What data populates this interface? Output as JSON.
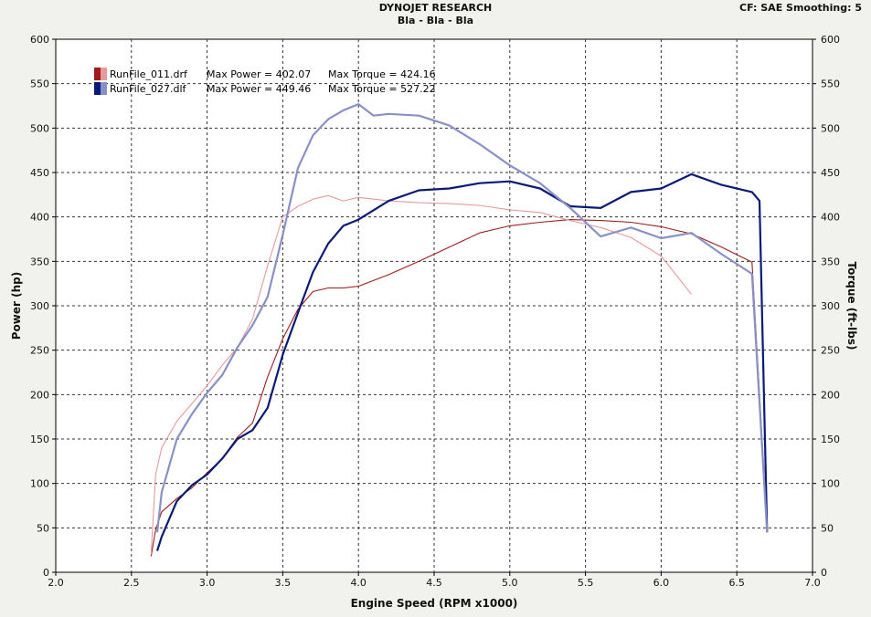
{
  "header": {
    "title": "DYNOJET RESEARCH",
    "subtitle": "Bla - Bla - Bla",
    "cf_info": "CF: SAE  Smoothing: 5"
  },
  "chart_data": {
    "type": "line",
    "xlabel": "Engine Speed (RPM x1000)",
    "ylabel_left": "Power (hp)",
    "ylabel_right": "Torque (ft-lbs)",
    "xlim": [
      2.0,
      7.0
    ],
    "ylim": [
      0,
      600
    ],
    "x_ticks": [
      "2.0",
      "2.5",
      "3.0",
      "3.5",
      "4.0",
      "4.5",
      "5.0",
      "5.5",
      "6.0",
      "6.5",
      "7.0"
    ],
    "y_ticks": [
      "0",
      "50",
      "100",
      "150",
      "200",
      "250",
      "300",
      "350",
      "400",
      "450",
      "500",
      "550",
      "600"
    ],
    "grid": true,
    "legend_position": "top-left",
    "legend": [
      {
        "file": "RunFile_011.drf",
        "power_label": "Max Power = 402.07",
        "torque_label": "Max Torque = 424.16"
      },
      {
        "file": "RunFile_027.dlf",
        "power_label": "Max Power = 449.46",
        "torque_label": "Max Torque = 527.22"
      }
    ],
    "series": [
      {
        "run": "RunFile_011.drf",
        "quantity": "power",
        "color": "#a01c1c",
        "x": [
          2.63,
          2.66,
          2.7,
          2.8,
          2.9,
          3.0,
          3.1,
          3.2,
          3.3,
          3.4,
          3.5,
          3.6,
          3.7,
          3.8,
          3.9,
          4.0,
          4.2,
          4.4,
          4.6,
          4.8,
          5.0,
          5.2,
          5.4,
          5.6,
          5.8,
          6.0,
          6.2,
          6.4,
          6.6,
          6.7
        ],
        "values": [
          18,
          48,
          68,
          83,
          95,
          112,
          128,
          152,
          168,
          220,
          263,
          296,
          316,
          320,
          320,
          322,
          335,
          350,
          366,
          382,
          390,
          394,
          397,
          396,
          394,
          389,
          381,
          366,
          349,
          50
        ]
      },
      {
        "run": "RunFile_011.drf",
        "quantity": "torque",
        "color": "#e69a9a",
        "x": [
          2.63,
          2.66,
          2.7,
          2.8,
          2.9,
          3.0,
          3.1,
          3.2,
          3.3,
          3.4,
          3.5,
          3.6,
          3.7,
          3.8,
          3.9,
          4.0,
          4.2,
          4.4,
          4.6,
          4.8,
          5.0,
          5.2,
          5.4,
          5.6,
          5.8,
          6.0,
          6.2
        ],
        "values": [
          20,
          110,
          140,
          170,
          190,
          210,
          233,
          253,
          285,
          345,
          400,
          412,
          420,
          424,
          418,
          422,
          418,
          416,
          415,
          413,
          408,
          405,
          396,
          388,
          377,
          356,
          313
        ]
      },
      {
        "run": "RunFile_027.dlf",
        "quantity": "power",
        "color": "#0a1a7a",
        "x": [
          2.67,
          2.7,
          2.8,
          2.9,
          3.0,
          3.1,
          3.2,
          3.3,
          3.4,
          3.5,
          3.6,
          3.7,
          3.8,
          3.9,
          4.0,
          4.2,
          4.4,
          4.6,
          4.8,
          5.0,
          5.2,
          5.4,
          5.6,
          5.8,
          6.0,
          6.2,
          6.4,
          6.6,
          6.65,
          6.7
        ],
        "values": [
          24,
          40,
          80,
          98,
          110,
          128,
          150,
          160,
          185,
          245,
          292,
          338,
          370,
          390,
          397,
          418,
          430,
          432,
          438,
          440,
          432,
          412,
          410,
          428,
          432,
          448,
          436,
          428,
          418,
          45
        ]
      },
      {
        "run": "RunFile_027.dlf",
        "quantity": "torque",
        "color": "#8890c8",
        "x": [
          2.67,
          2.7,
          2.8,
          2.9,
          3.0,
          3.1,
          3.2,
          3.3,
          3.4,
          3.5,
          3.6,
          3.7,
          3.8,
          3.9,
          4.0,
          4.1,
          4.2,
          4.4,
          4.6,
          4.8,
          5.0,
          5.2,
          5.4,
          5.6,
          5.8,
          6.0,
          6.2,
          6.4,
          6.6,
          6.7
        ],
        "values": [
          45,
          90,
          150,
          178,
          202,
          222,
          253,
          278,
          310,
          380,
          455,
          492,
          510,
          520,
          527,
          514,
          516,
          514,
          503,
          482,
          458,
          438,
          410,
          378,
          388,
          376,
          382,
          358,
          336,
          45
        ]
      }
    ]
  },
  "colors": {
    "plot_background": "#ffffff",
    "window_background": "#f1f1ed",
    "grid": "#333333",
    "legend_swatch_011_power": "#a01c1c",
    "legend_swatch_011_torque": "#e69a9a",
    "legend_swatch_027_power": "#0a1a7a",
    "legend_swatch_027_torque": "#8890c8"
  }
}
